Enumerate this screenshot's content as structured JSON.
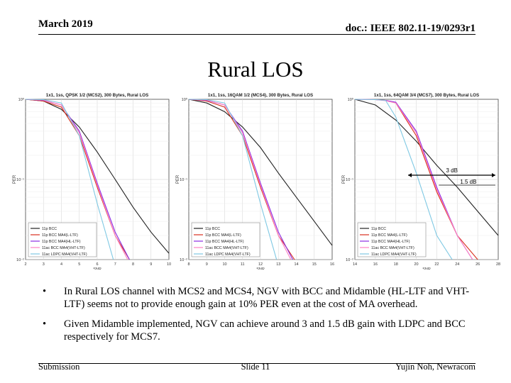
{
  "header": {
    "date": "March 2019",
    "doc": "doc.: IEEE 802.11-19/0293r1"
  },
  "slide": {
    "title": "Rural LOS"
  },
  "chart_data": [
    {
      "type": "line",
      "title": "1x1, 1ss, QPSK 1/2 (MCS2), 300 Bytes, Rural LOS",
      "xlabel": "SNR",
      "ylabel": "PER",
      "xlim": [
        2,
        10
      ],
      "ylim": [
        0.01,
        1
      ],
      "yscale": "log",
      "xticks": [
        "2",
        "3",
        "4",
        "5",
        "6",
        "7",
        "8",
        "9",
        "10"
      ],
      "yticks": [
        "10^0",
        "10^-1",
        "10^-2"
      ],
      "grid": true,
      "legend_position": "bottom-left",
      "legend": [
        "11p BCC",
        "11p BCC MA4(L-LTF)",
        "11p BCC MA4(HL-LTF)",
        "11ac BCC MA4(VHT-LTF)",
        "11ac LDPC MA4(VHT-LTF)"
      ],
      "series": [
        {
          "name": "11p BCC",
          "color": "#222222",
          "x": [
            2,
            3,
            4,
            5,
            6,
            7,
            8,
            9,
            10
          ],
          "y": [
            1,
            0.95,
            0.75,
            0.45,
            0.22,
            0.1,
            0.045,
            0.022,
            0.012
          ]
        },
        {
          "name": "11p BCC MA4(L-LTF)",
          "color": "#d9301e",
          "x": [
            2,
            3,
            4,
            5,
            6,
            7,
            7.8
          ],
          "y": [
            1,
            0.95,
            0.8,
            0.35,
            0.08,
            0.02,
            0.01
          ]
        },
        {
          "name": "11p BCC MA4(HL-LTF)",
          "color": "#8a2be2",
          "x": [
            2,
            3,
            4,
            5,
            6,
            7,
            7.8
          ],
          "y": [
            1,
            0.97,
            0.85,
            0.4,
            0.09,
            0.022,
            0.01
          ]
        },
        {
          "name": "11ac BCC MA4(VHT-LTF)",
          "color": "#ff80c0",
          "x": [
            2,
            3,
            4,
            5,
            6,
            7,
            7.7
          ],
          "y": [
            1,
            0.98,
            0.85,
            0.38,
            0.085,
            0.02,
            0.01
          ]
        },
        {
          "name": "11ac LDPC MA4(VHT-LTF)",
          "color": "#7ec8e3",
          "x": [
            2,
            3,
            4,
            5,
            6,
            6.9
          ],
          "y": [
            1,
            0.99,
            0.9,
            0.35,
            0.05,
            0.01
          ]
        }
      ]
    },
    {
      "type": "line",
      "title": "1x1, 1ss, 16QAM 1/2 (MCS4), 300 Bytes, Rural LOS",
      "xlabel": "SNR",
      "ylabel": "PER",
      "xlim": [
        8,
        16
      ],
      "ylim": [
        0.01,
        1
      ],
      "yscale": "log",
      "xticks": [
        "8",
        "9",
        "10",
        "11",
        "12",
        "13",
        "14",
        "15",
        "16"
      ],
      "yticks": [
        "10^0",
        "10^-1",
        "10^-2"
      ],
      "grid": true,
      "legend_position": "bottom-left",
      "legend": [
        "11p BCC",
        "11p BCC MA4(L-LTF)",
        "11p BCC MA4(HL-LTF)",
        "11ac BCC MA4(VHT-LTF)",
        "11ac LDPC MA4(VHT-LTF)"
      ],
      "series": [
        {
          "name": "11p BCC",
          "color": "#222222",
          "x": [
            8,
            9,
            10,
            11,
            12,
            13,
            14,
            15,
            16
          ],
          "y": [
            1,
            0.9,
            0.7,
            0.45,
            0.25,
            0.12,
            0.06,
            0.03,
            0.015
          ]
        },
        {
          "name": "11p BCC MA4(L-LTF)",
          "color": "#d9301e",
          "x": [
            8,
            9,
            10,
            11,
            12,
            13,
            13.9
          ],
          "y": [
            1,
            0.95,
            0.8,
            0.35,
            0.08,
            0.02,
            0.01
          ]
        },
        {
          "name": "11p BCC MA4(HL-LTF)",
          "color": "#8a2be2",
          "x": [
            8,
            9,
            10,
            11,
            12,
            13,
            13.8
          ],
          "y": [
            1,
            0.97,
            0.85,
            0.4,
            0.09,
            0.022,
            0.01
          ]
        },
        {
          "name": "11ac BCC MA4(VHT-LTF)",
          "color": "#ff80c0",
          "x": [
            8,
            9,
            10,
            11,
            12,
            13,
            13.7
          ],
          "y": [
            1,
            0.98,
            0.85,
            0.38,
            0.085,
            0.02,
            0.01
          ]
        },
        {
          "name": "11ac LDPC MA4(VHT-LTF)",
          "color": "#7ec8e3",
          "x": [
            8,
            9,
            10,
            11,
            12,
            12.9
          ],
          "y": [
            1,
            0.99,
            0.9,
            0.35,
            0.05,
            0.01
          ]
        }
      ]
    },
    {
      "type": "line",
      "title": "1x1, 1ss, 64QAM 3/4 (MCS7), 300 Bytes, Rural LOS",
      "xlabel": "SNR",
      "ylabel": "PER",
      "xlim": [
        14,
        28
      ],
      "ylim": [
        0.01,
        1
      ],
      "yscale": "log",
      "xticks": [
        "14",
        "16",
        "18",
        "20",
        "22",
        "24",
        "26",
        "28"
      ],
      "yticks": [
        "10^0",
        "10^-1",
        "10^-2"
      ],
      "grid": true,
      "legend_position": "bottom-left",
      "legend": [
        "11p BCC",
        "11p BCC MA4(L-LTF)",
        "11p BCC MA4(HL-LTF)",
        "11ac BCC MA4(VHT-LTF)",
        "11ac LDPC MA4(VHT-LTF)"
      ],
      "annotations": [
        "3 dB",
        "1.5 dB"
      ],
      "series": [
        {
          "name": "11p BCC",
          "color": "#222222",
          "x": [
            14,
            16,
            18,
            20,
            22,
            24,
            26,
            28
          ],
          "y": [
            1,
            0.85,
            0.55,
            0.3,
            0.15,
            0.08,
            0.04,
            0.02
          ]
        },
        {
          "name": "11p BCC MA4(L-LTF)",
          "color": "#d9301e",
          "x": [
            14,
            16,
            17,
            18,
            20,
            22,
            24,
            26
          ],
          "y": [
            1,
            0.99,
            0.97,
            0.9,
            0.35,
            0.07,
            0.02,
            0.01
          ]
        },
        {
          "name": "11p BCC MA4(HL-LTF)",
          "color": "#8a2be2",
          "x": [
            14,
            16,
            17,
            18,
            20,
            22,
            24,
            25.5
          ],
          "y": [
            1,
            0.99,
            0.97,
            0.92,
            0.4,
            0.08,
            0.02,
            0.01
          ]
        },
        {
          "name": "11ac BCC MA4(VHT-LTF)",
          "color": "#ff80c0",
          "x": [
            14,
            16,
            17,
            18,
            20,
            22,
            24,
            25.5
          ],
          "y": [
            1,
            0.99,
            0.96,
            0.9,
            0.38,
            0.075,
            0.02,
            0.01
          ]
        },
        {
          "name": "11ac LDPC MA4(VHT-LTF)",
          "color": "#7ec8e3",
          "x": [
            14,
            16,
            17,
            18,
            20,
            22,
            23.5
          ],
          "y": [
            1,
            0.99,
            0.97,
            0.6,
            0.12,
            0.02,
            0.01
          ]
        }
      ]
    }
  ],
  "bullets": [
    "In Rural LOS channel with MCS2 and MCS4, NGV with BCC and Midamble (HL-LTF and VHT-LTF) seems not to provide enough gain at 10% PER even at the cost of MA overhead.",
    "Given Midamble implemented, NGV can achieve around 3 and 1.5 dB gain with LDPC and BCC respectively for MCS7."
  ],
  "footer": {
    "left": "Submission",
    "center": "Slide 11",
    "right": "Yujin Noh, Newracom"
  }
}
